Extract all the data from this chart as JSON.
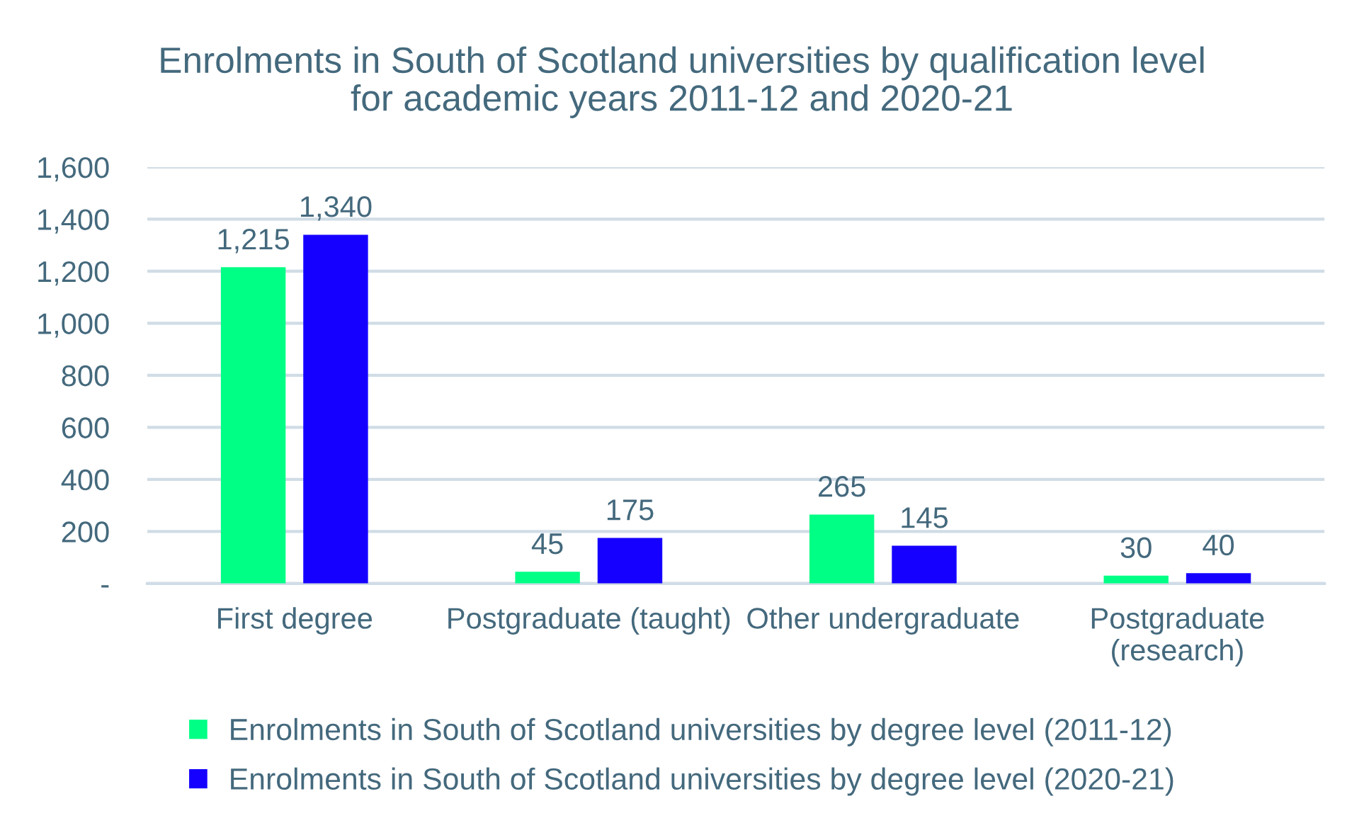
{
  "chart_data": {
    "type": "bar",
    "title": "Enrolments in South of Scotland universities by qualification level\nfor academic years 2011-12 and 2020-21",
    "categories": [
      "First degree",
      "Postgraduate (taught)",
      "Other undergraduate",
      "Postgraduate\n(research)"
    ],
    "series": [
      {
        "name": "Enrolments in South of Scotland universities by degree level (2011-12)",
        "color": "#00ff85",
        "values": [
          1215,
          45,
          265,
          30
        ],
        "value_labels": [
          "1,215",
          "45",
          "265",
          "30"
        ]
      },
      {
        "name": "Enrolments in South of Scotland universities by degree level (2020-21)",
        "color": "#1500ff",
        "values": [
          1340,
          175,
          145,
          40
        ],
        "value_labels": [
          "1,340",
          "175",
          "145",
          "40"
        ]
      }
    ],
    "ylim": [
      0,
      1600
    ],
    "yticks": [
      {
        "value": 0,
        "label": "-"
      },
      200,
      400,
      600,
      800,
      {
        "value": 1000,
        "label": "1,000"
      },
      {
        "value": 1200,
        "label": "1,200"
      },
      {
        "value": 1400,
        "label": "1,400"
      },
      {
        "value": 1600,
        "label": "1,600"
      }
    ],
    "grid": "y",
    "legend": "bottom"
  }
}
